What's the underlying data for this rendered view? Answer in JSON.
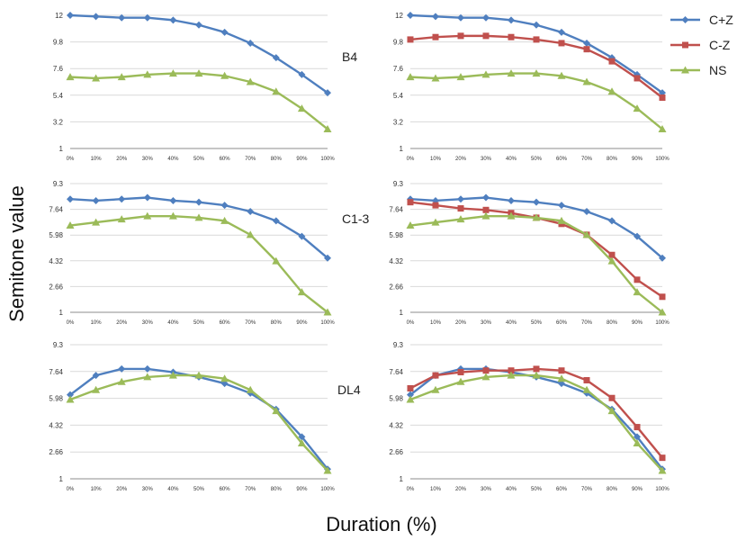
{
  "figure": {
    "ylabel": "Semitone value",
    "xlabel": "Duration (%)"
  },
  "legend": [
    {
      "name": "C+Z",
      "color": "#4f7fbf",
      "marker": "diamond"
    },
    {
      "name": "C-Z",
      "color": "#c0504d",
      "marker": "square"
    },
    {
      "name": "NS",
      "color": "#9bbb59",
      "marker": "triangle"
    }
  ],
  "chart_data": [
    {
      "type": "line",
      "row": "B4",
      "label": "B4",
      "column": "left",
      "categories": [
        "0%",
        "10%",
        "20%",
        "30%",
        "40%",
        "50%",
        "60%",
        "70%",
        "80%",
        "90%",
        "100%"
      ],
      "yticks": [
        "1",
        "3.2",
        "5.4",
        "7.6",
        "9.8",
        "12"
      ],
      "ylim": [
        1,
        12
      ],
      "grid": true,
      "series": [
        {
          "name": "C+Z",
          "values": [
            12.0,
            11.9,
            11.8,
            11.8,
            11.6,
            11.2,
            10.6,
            9.7,
            8.5,
            7.1,
            5.6
          ]
        },
        {
          "name": "NS",
          "values": [
            6.9,
            6.8,
            6.9,
            7.1,
            7.2,
            7.2,
            7.0,
            6.5,
            5.7,
            4.3,
            2.6
          ]
        }
      ]
    },
    {
      "type": "line",
      "row": "B4",
      "label": "",
      "column": "right",
      "categories": [
        "0%",
        "10%",
        "20%",
        "30%",
        "40%",
        "50%",
        "60%",
        "70%",
        "80%",
        "90%",
        "100%"
      ],
      "yticks": [
        "1",
        "3.2",
        "5.4",
        "7.6",
        "9.8",
        "12"
      ],
      "ylim": [
        1,
        12
      ],
      "grid": true,
      "series": [
        {
          "name": "C+Z",
          "values": [
            12.0,
            11.9,
            11.8,
            11.8,
            11.6,
            11.2,
            10.6,
            9.7,
            8.5,
            7.1,
            5.6
          ]
        },
        {
          "name": "C-Z",
          "values": [
            10.0,
            10.2,
            10.3,
            10.3,
            10.2,
            10.0,
            9.7,
            9.2,
            8.2,
            6.8,
            5.2
          ]
        },
        {
          "name": "NS",
          "values": [
            6.9,
            6.8,
            6.9,
            7.1,
            7.2,
            7.2,
            7.0,
            6.5,
            5.7,
            4.3,
            2.6
          ]
        }
      ]
    },
    {
      "type": "line",
      "row": "C1-3",
      "label": "C1-3",
      "column": "left",
      "categories": [
        "0%",
        "10%",
        "20%",
        "30%",
        "40%",
        "50%",
        "60%",
        "70%",
        "80%",
        "90%",
        "100%"
      ],
      "yticks": [
        "1",
        "2.66",
        "4.32",
        "5.98",
        "7.64",
        "9.3"
      ],
      "ylim": [
        1,
        9.3
      ],
      "grid": true,
      "series": [
        {
          "name": "C+Z",
          "values": [
            8.3,
            8.2,
            8.3,
            8.4,
            8.2,
            8.1,
            7.9,
            7.5,
            6.9,
            5.9,
            4.5
          ]
        },
        {
          "name": "NS",
          "values": [
            6.6,
            6.8,
            7.0,
            7.2,
            7.2,
            7.1,
            6.9,
            6.0,
            4.3,
            2.3,
            1.0
          ]
        }
      ]
    },
    {
      "type": "line",
      "row": "C1-3",
      "label": "",
      "column": "right",
      "categories": [
        "0%",
        "10%",
        "20%",
        "30%",
        "40%",
        "50%",
        "60%",
        "70%",
        "80%",
        "90%",
        "100%"
      ],
      "yticks": [
        "1",
        "2.66",
        "4.32",
        "5.98",
        "7.64",
        "9.3"
      ],
      "ylim": [
        1,
        9.3
      ],
      "grid": true,
      "series": [
        {
          "name": "C+Z",
          "values": [
            8.3,
            8.2,
            8.3,
            8.4,
            8.2,
            8.1,
            7.9,
            7.5,
            6.9,
            5.9,
            4.5
          ]
        },
        {
          "name": "C-Z",
          "values": [
            8.1,
            7.9,
            7.7,
            7.6,
            7.4,
            7.1,
            6.7,
            6.0,
            4.7,
            3.1,
            2.0
          ]
        },
        {
          "name": "NS",
          "values": [
            6.6,
            6.8,
            7.0,
            7.2,
            7.2,
            7.1,
            6.9,
            6.0,
            4.3,
            2.3,
            1.0
          ]
        }
      ]
    },
    {
      "type": "line",
      "row": "DL4",
      "label": "DL4",
      "column": "left",
      "categories": [
        "0%",
        "10%",
        "20%",
        "30%",
        "40%",
        "50%",
        "60%",
        "70%",
        "80%",
        "90%",
        "100%"
      ],
      "yticks": [
        "1",
        "2.66",
        "4.32",
        "5.98",
        "7.64",
        "9.3"
      ],
      "ylim": [
        1,
        9.3
      ],
      "grid": true,
      "series": [
        {
          "name": "C+Z",
          "values": [
            6.2,
            7.4,
            7.8,
            7.8,
            7.6,
            7.3,
            6.9,
            6.3,
            5.3,
            3.6,
            1.6
          ]
        },
        {
          "name": "NS",
          "values": [
            5.9,
            6.5,
            7.0,
            7.3,
            7.4,
            7.4,
            7.2,
            6.5,
            5.2,
            3.2,
            1.5
          ]
        }
      ]
    },
    {
      "type": "line",
      "row": "DL4",
      "label": "",
      "column": "right",
      "categories": [
        "0%",
        "10%",
        "20%",
        "30%",
        "40%",
        "50%",
        "60%",
        "70%",
        "80%",
        "90%",
        "100%"
      ],
      "yticks": [
        "1",
        "2.66",
        "4.32",
        "5.98",
        "7.64",
        "9.3"
      ],
      "ylim": [
        1,
        9.3
      ],
      "grid": true,
      "series": [
        {
          "name": "C+Z",
          "values": [
            6.2,
            7.4,
            7.8,
            7.8,
            7.6,
            7.3,
            6.9,
            6.3,
            5.3,
            3.6,
            1.6
          ]
        },
        {
          "name": "C-Z",
          "values": [
            6.6,
            7.4,
            7.6,
            7.7,
            7.7,
            7.8,
            7.7,
            7.1,
            6.0,
            4.2,
            2.3
          ]
        },
        {
          "name": "NS",
          "values": [
            5.9,
            6.5,
            7.0,
            7.3,
            7.4,
            7.4,
            7.2,
            6.5,
            5.2,
            3.2,
            1.5
          ]
        }
      ]
    }
  ]
}
